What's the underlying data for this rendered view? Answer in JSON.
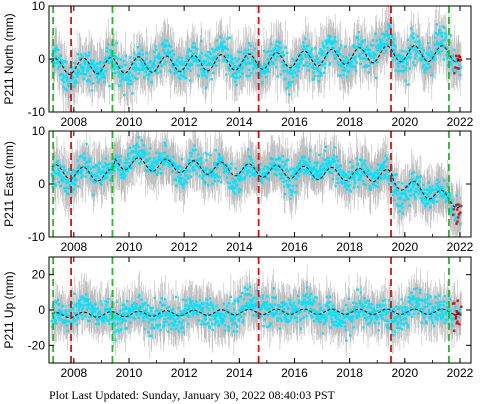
{
  "chart_data": [
    {
      "type": "scatter",
      "ylabel": "P211 North (mm)",
      "ylim": [
        -10,
        10
      ],
      "yticks": [
        -10,
        0,
        10
      ],
      "xlim": [
        2007.1,
        2022.4
      ],
      "xticks": [
        2008,
        2010,
        2012,
        2014,
        2016,
        2018,
        2020,
        2022
      ],
      "model_offset": -0.5,
      "seasonal_amp": 1.5,
      "trend": [
        [
          2007.2,
          -1.5
        ],
        [
          2014.7,
          -0.5
        ],
        [
          2019.5,
          1.0
        ],
        [
          2022.0,
          1.0
        ]
      ],
      "scatter_sd": 2.2,
      "noise_band": 5.0,
      "vlines": [
        {
          "x": 2007.25,
          "color": "#22bb22"
        },
        {
          "x": 2007.9,
          "color": "#dd1111"
        },
        {
          "x": 2009.4,
          "color": "#22bb22"
        },
        {
          "x": 2014.7,
          "color": "#dd1111"
        },
        {
          "x": 2019.5,
          "color": "#dd1111"
        },
        {
          "x": 2021.6,
          "color": "#22bb22"
        }
      ]
    },
    {
      "type": "scatter",
      "ylabel": "P211 East (mm)",
      "ylim": [
        -10,
        10
      ],
      "yticks": [
        -10,
        0,
        10
      ],
      "xlim": [
        2007.1,
        2022.4
      ],
      "xticks": [
        2008,
        2010,
        2012,
        2014,
        2016,
        2018,
        2020,
        2022
      ],
      "seasonal_amp": 1.2,
      "trend": [
        [
          2007.2,
          2.5
        ],
        [
          2009.4,
          1.5
        ],
        [
          2009.5,
          4.0
        ],
        [
          2014.7,
          2.5
        ],
        [
          2019.5,
          1.5
        ],
        [
          2019.6,
          0.5
        ],
        [
          2022.0,
          -3.5
        ]
      ],
      "scatter_sd": 1.8,
      "noise_band": 5.0,
      "vlines": [
        {
          "x": 2007.25,
          "color": "#22bb22"
        },
        {
          "x": 2007.9,
          "color": "#dd1111"
        },
        {
          "x": 2009.4,
          "color": "#22bb22"
        },
        {
          "x": 2014.7,
          "color": "#dd1111"
        },
        {
          "x": 2019.5,
          "color": "#dd1111"
        },
        {
          "x": 2021.6,
          "color": "#22bb22"
        }
      ]
    },
    {
      "type": "scatter",
      "ylabel": "P211 Up (mm)",
      "ylim": [
        -30,
        30
      ],
      "yticks": [
        -20,
        0,
        20
      ],
      "xlim": [
        2007.1,
        2022.4
      ],
      "xticks": [
        2008,
        2010,
        2012,
        2014,
        2016,
        2018,
        2020,
        2022
      ],
      "seasonal_amp": 1.5,
      "trend": [
        [
          2007.2,
          -3.0
        ],
        [
          2014.7,
          -1.0
        ],
        [
          2022.0,
          -1.0
        ]
      ],
      "scatter_sd": 6.0,
      "noise_band": 14.0,
      "vlines": [
        {
          "x": 2007.25,
          "color": "#22bb22"
        },
        {
          "x": 2007.9,
          "color": "#dd1111"
        },
        {
          "x": 2009.4,
          "color": "#22bb22"
        },
        {
          "x": 2014.7,
          "color": "#dd1111"
        },
        {
          "x": 2019.5,
          "color": "#dd1111"
        },
        {
          "x": 2021.6,
          "color": "#22bb22"
        }
      ]
    }
  ],
  "colors": {
    "daily_points": "#00e5ff",
    "error_bars": "#b4b4b4",
    "model_line": "#000000",
    "recent_points": "#dd1111"
  },
  "footer": {
    "text": "Plot Last Updated:   Sunday, January 30, 2022 08:40:03 PST"
  }
}
